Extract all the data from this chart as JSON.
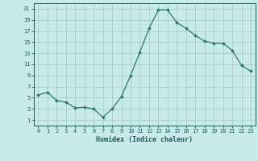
{
  "x": [
    0,
    1,
    2,
    3,
    4,
    5,
    6,
    7,
    8,
    9,
    10,
    11,
    12,
    13,
    14,
    15,
    16,
    17,
    18,
    19,
    20,
    21,
    22,
    23
  ],
  "y": [
    5.5,
    6.0,
    4.5,
    4.2,
    3.2,
    3.3,
    3.0,
    1.5,
    3.0,
    5.2,
    9.0,
    13.2,
    17.5,
    20.8,
    20.8,
    18.5,
    17.5,
    16.2,
    15.2,
    14.8,
    14.8,
    13.5,
    10.8,
    9.8
  ],
  "xlabel": "Humidex (Indice chaleur)",
  "line_color": "#2d7a6a",
  "marker_color": "#2d7a6a",
  "bg_color": "#c8eaea",
  "grid_color": "#aacccc",
  "text_color": "#1a5a5a",
  "xlim": [
    -0.5,
    23.5
  ],
  "ylim": [
    0,
    22
  ],
  "yticks": [
    1,
    3,
    5,
    7,
    9,
    11,
    13,
    15,
    17,
    19,
    21
  ],
  "xticks": [
    0,
    1,
    2,
    3,
    4,
    5,
    6,
    7,
    8,
    9,
    10,
    11,
    12,
    13,
    14,
    15,
    16,
    17,
    18,
    19,
    20,
    21,
    22,
    23
  ]
}
